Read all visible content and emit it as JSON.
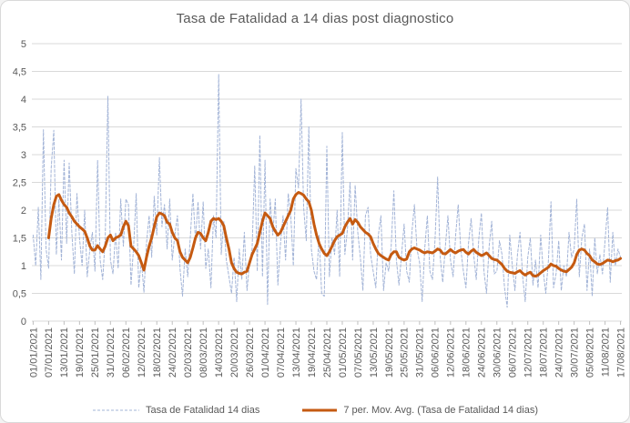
{
  "chart_data": {
    "type": "line",
    "title": "Tasa de Fatalidad a 14 dias post diagnostico",
    "xlabel": "",
    "ylabel": "",
    "ylim": [
      0,
      5
    ],
    "y_tick_step": 0.5,
    "y_tick_labels": [
      "0",
      "0,5",
      "1",
      "1,5",
      "2",
      "2,5",
      "3",
      "3,5",
      "4",
      "4,5",
      "5"
    ],
    "grid": "horizontal",
    "legend_position": "bottom",
    "n_days": 229,
    "x_start_date": "01/01/2021",
    "x_end_date": "17/08/2021",
    "x_tick_every_days": 6,
    "x_tick_labels": [
      "01/01/2021",
      "07/01/2021",
      "13/01/2021",
      "19/01/2021",
      "25/01/2021",
      "31/01/2021",
      "06/02/2021",
      "12/02/2021",
      "18/02/2021",
      "24/02/2021",
      "02/03/2021",
      "08/03/2021",
      "14/03/2021",
      "20/03/2021",
      "26/03/2021",
      "01/04/2021",
      "07/04/2021",
      "13/04/2021",
      "19/04/2021",
      "25/04/2021",
      "01/05/2021",
      "07/05/2021",
      "13/05/2021",
      "19/05/2021",
      "25/05/2021",
      "31/05/2021",
      "06/06/2021",
      "12/06/2021",
      "18/06/2021",
      "24/06/2021",
      "30/06/2021",
      "06/07/2021",
      "12/07/2021",
      "18/07/2021",
      "24/07/2021",
      "30/07/2021",
      "05/08/2021",
      "11/08/2021",
      "17/08/2021"
    ],
    "series": [
      {
        "name": "Tasa de Fatalidad 14 dias",
        "color": "#a3b4d7",
        "line_width": 1,
        "dashed": true,
        "start_day": 0,
        "values": [
          1.55,
          1.0,
          2.05,
          0.75,
          3.45,
          1.3,
          0.95,
          2.75,
          3.44,
          1.2,
          2.2,
          1.1,
          2.9,
          1.4,
          2.85,
          1.6,
          0.85,
          2.3,
          1.5,
          1.0,
          2.0,
          0.8,
          1.3,
          1.6,
          0.9,
          2.9,
          1.1,
          0.75,
          1.5,
          4.05,
          1.1,
          0.85,
          1.6,
          0.95,
          2.2,
          1.35,
          2.2,
          2.1,
          0.65,
          1.35,
          2.3,
          0.6,
          1.1,
          0.52,
          1.4,
          1.9,
          1.15,
          2.25,
          1.55,
          2.95,
          1.7,
          2.1,
          1.3,
          2.2,
          1.1,
          1.55,
          1.9,
          0.95,
          0.45,
          1.3,
          0.8,
          1.5,
          2.3,
          1.45,
          2.15,
          1.3,
          2.15,
          0.95,
          1.3,
          0.6,
          1.9,
          1.5,
          4.45,
          1.2,
          1.8,
          1.1,
          0.8,
          0.5,
          1.15,
          0.35,
          1.3,
          0.75,
          1.6,
          0.55,
          1.05,
          1.3,
          2.8,
          0.9,
          3.35,
          0.8,
          2.9,
          0.3,
          2.2,
          1.55,
          2.2,
          0.65,
          1.4,
          1.9,
          1.1,
          2.3,
          1.9,
          1.0,
          2.75,
          2.4,
          4.0,
          2.05,
          1.45,
          3.5,
          1.3,
          0.9,
          0.75,
          1.55,
          0.5,
          0.45,
          3.15,
          0.8,
          1.5,
          1.2,
          2.0,
          0.8,
          3.4,
          1.2,
          1.65,
          2.5,
          1.1,
          2.45,
          1.6,
          1.15,
          0.55,
          1.9,
          2.05,
          1.2,
          0.9,
          0.6,
          1.55,
          1.9,
          0.55,
          1.05,
          0.9,
          1.35,
          2.35,
          1.1,
          0.65,
          1.2,
          1.75,
          0.9,
          0.7,
          1.6,
          2.1,
          1.3,
          1.05,
          0.35,
          1.3,
          1.9,
          0.9,
          0.75,
          1.45,
          2.6,
          1.15,
          0.7,
          1.35,
          1.9,
          1.1,
          0.8,
          1.55,
          2.1,
          1.3,
          0.9,
          0.6,
          1.4,
          1.85,
          1.2,
          0.75,
          1.5,
          1.95,
          0.9,
          0.5,
          1.35,
          1.8,
          0.85,
          0.9,
          1.45,
          1.2,
          0.6,
          0.25,
          1.55,
          1.0,
          0.55,
          1.2,
          1.6,
          0.8,
          0.35,
          1.15,
          1.5,
          0.65,
          1.1,
          0.6,
          1.55,
          0.9,
          0.5,
          1.1,
          2.15,
          0.6,
          0.85,
          1.45,
          0.55,
          1.0,
          0.8,
          1.6,
          1.15,
          1.3,
          2.2,
          0.8,
          1.5,
          1.75,
          0.55,
          1.3,
          0.45,
          1.5,
          0.85,
          1.2,
          0.85,
          1.45,
          2.05,
          0.7,
          1.6,
          1.0,
          1.3,
          1.15
        ]
      },
      {
        "name": "7 per. Mov. Avg. (Tasa de Fatalidad 14 dias)",
        "color": "#c55a11",
        "line_width": 3,
        "dashed": false,
        "start_day": 6,
        "values": [
          1.5,
          1.85,
          2.1,
          2.25,
          2.28,
          2.18,
          2.1,
          2.05,
          1.95,
          1.88,
          1.8,
          1.75,
          1.7,
          1.66,
          1.62,
          1.5,
          1.35,
          1.28,
          1.28,
          1.36,
          1.3,
          1.25,
          1.35,
          1.5,
          1.55,
          1.45,
          1.5,
          1.52,
          1.55,
          1.7,
          1.8,
          1.72,
          1.35,
          1.3,
          1.25,
          1.18,
          1.05,
          0.92,
          1.15,
          1.35,
          1.5,
          1.7,
          1.88,
          1.95,
          1.93,
          1.9,
          1.78,
          1.75,
          1.6,
          1.5,
          1.45,
          1.25,
          1.15,
          1.1,
          1.05,
          1.15,
          1.32,
          1.5,
          1.6,
          1.58,
          1.5,
          1.45,
          1.6,
          1.8,
          1.85,
          1.83,
          1.85,
          1.8,
          1.72,
          1.5,
          1.3,
          1.05,
          0.95,
          0.88,
          0.86,
          0.85,
          0.88,
          0.9,
          1.05,
          1.2,
          1.3,
          1.4,
          1.6,
          1.8,
          1.95,
          1.9,
          1.85,
          1.7,
          1.62,
          1.55,
          1.6,
          1.7,
          1.8,
          1.9,
          2.0,
          2.2,
          2.28,
          2.32,
          2.3,
          2.27,
          2.2,
          2.15,
          2.0,
          1.75,
          1.55,
          1.4,
          1.3,
          1.22,
          1.18,
          1.25,
          1.35,
          1.45,
          1.52,
          1.55,
          1.58,
          1.7,
          1.78,
          1.85,
          1.75,
          1.83,
          1.78,
          1.7,
          1.65,
          1.6,
          1.57,
          1.52,
          1.4,
          1.3,
          1.22,
          1.18,
          1.15,
          1.12,
          1.1,
          1.2,
          1.25,
          1.25,
          1.15,
          1.12,
          1.1,
          1.12,
          1.25,
          1.3,
          1.32,
          1.3,
          1.28,
          1.25,
          1.23,
          1.25,
          1.24,
          1.23,
          1.26,
          1.3,
          1.28,
          1.22,
          1.21,
          1.25,
          1.29,
          1.25,
          1.23,
          1.26,
          1.28,
          1.29,
          1.24,
          1.21,
          1.26,
          1.29,
          1.24,
          1.21,
          1.18,
          1.2,
          1.23,
          1.18,
          1.13,
          1.11,
          1.1,
          1.06,
          1.02,
          0.95,
          0.9,
          0.88,
          0.87,
          0.86,
          0.89,
          0.91,
          0.86,
          0.83,
          0.86,
          0.88,
          0.82,
          0.81,
          0.83,
          0.87,
          0.91,
          0.94,
          0.97,
          1.03,
          1.0,
          0.99,
          0.95,
          0.92,
          0.9,
          0.89,
          0.93,
          0.97,
          1.05,
          1.2,
          1.28,
          1.3,
          1.28,
          1.22,
          1.18,
          1.1,
          1.07,
          1.03,
          1.02,
          1.04,
          1.07,
          1.1,
          1.09,
          1.07,
          1.09,
          1.1,
          1.13
        ]
      }
    ]
  },
  "legend": [
    {
      "label": "Tasa de Fatalidad 14 dias"
    },
    {
      "label": "7 per. Mov. Avg. (Tasa de Fatalidad 14 dias)"
    }
  ],
  "colors": {
    "title": "#595959",
    "axis_labels": "#595959",
    "gridline": "#d9d9d9",
    "tick": "#bfbfbf",
    "frame_border": "#d9d9d9",
    "raw_series": "#a3b4d7",
    "avg_series": "#c55a11"
  }
}
